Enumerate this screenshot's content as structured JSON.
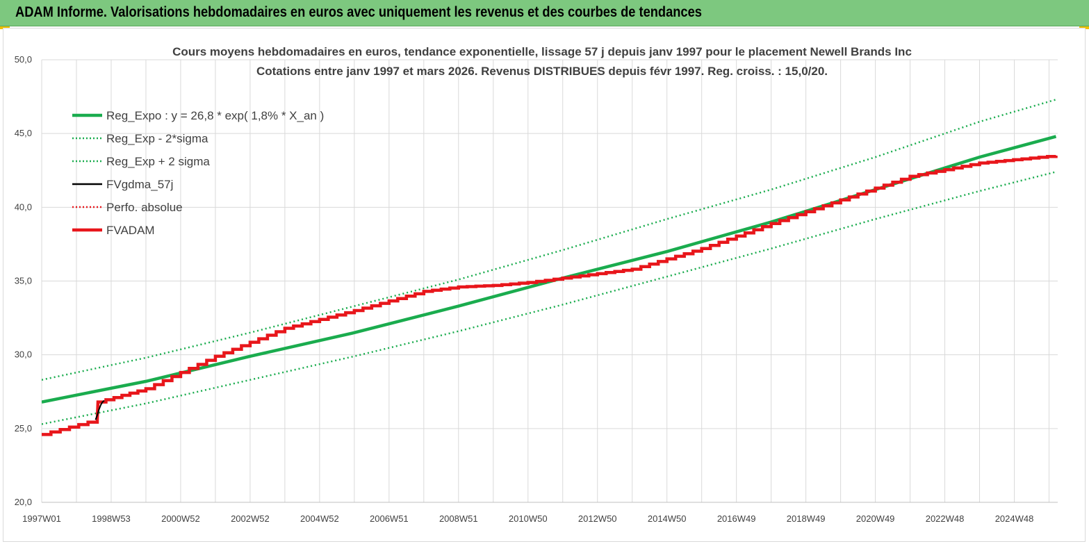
{
  "header": {
    "title": "ADAM Informe. Valorisations hebdomadaires en euros avec uniquement les revenus et des courbes de tendances"
  },
  "colors": {
    "header_bg": "#7dc87f",
    "green": "#1aac4e",
    "red": "#e8161b",
    "black": "#000000",
    "grid": "#d9d9d9",
    "text": "#404040"
  },
  "chart_data": {
    "type": "line",
    "title": [
      "Cours moyens hebdomadaires en euros, tendance exponentielle, lissage 57 j depuis janv 1997 pour le placement Newell Brands Inc",
      "Cotations entre janv 1997 et mars 2026. Revenus DISTRIBUES depuis févr 1997. Reg. croiss. : 15,0/20."
    ],
    "ylim": [
      20,
      50
    ],
    "xlim": [
      1997.0,
      2026.25
    ],
    "y_ticks": [
      "20,0",
      "25,0",
      "30,0",
      "35,0",
      "40,0",
      "45,0",
      "50,0"
    ],
    "x_ticks": [
      {
        "label": "1997W01",
        "x": 1997.0
      },
      {
        "label": "1998W53",
        "x": 1999.0
      },
      {
        "label": "2000W52",
        "x": 2001.0
      },
      {
        "label": "2002W52",
        "x": 2003.0
      },
      {
        "label": "2004W52",
        "x": 2005.0
      },
      {
        "label": "2006W51",
        "x": 2007.0
      },
      {
        "label": "2008W51",
        "x": 2009.0
      },
      {
        "label": "2010W50",
        "x": 2011.0
      },
      {
        "label": "2012W50",
        "x": 2013.0
      },
      {
        "label": "2014W50",
        "x": 2015.0
      },
      {
        "label": "2016W49",
        "x": 2017.0
      },
      {
        "label": "2018W49",
        "x": 2019.0
      },
      {
        "label": "2020W49",
        "x": 2021.0
      },
      {
        "label": "2022W48",
        "x": 2023.0
      },
      {
        "label": "2024W48",
        "x": 2025.0
      }
    ],
    "grid": true,
    "legend_position": "top-left",
    "series": [
      {
        "name": "Reg_Expo : y = 26,8 * exp( 1,8% *  X_an )",
        "style": "solid-thick",
        "color": "#1aac4e",
        "x": [
          1997.0,
          2000.0,
          2003.0,
          2006.0,
          2009.0,
          2012.0,
          2015.0,
          2018.0,
          2021.0,
          2024.0,
          2026.2
        ],
        "y": [
          26.8,
          28.2,
          29.9,
          31.5,
          33.3,
          35.2,
          37.0,
          39.0,
          41.2,
          43.4,
          44.8
        ]
      },
      {
        "name": "Reg_Exp - 2*sigma",
        "style": "dotted",
        "color": "#1aac4e",
        "x": [
          1997.0,
          2000.0,
          2003.0,
          2006.0,
          2009.0,
          2012.0,
          2015.0,
          2018.0,
          2021.0,
          2024.0,
          2026.2
        ],
        "y": [
          25.3,
          26.7,
          28.3,
          29.9,
          31.6,
          33.4,
          35.3,
          37.2,
          39.2,
          41.1,
          42.4
        ]
      },
      {
        "name": "Reg_Exp + 2 sigma",
        "style": "dotted",
        "color": "#1aac4e",
        "x": [
          1997.0,
          2000.0,
          2003.0,
          2006.0,
          2009.0,
          2012.0,
          2015.0,
          2018.0,
          2021.0,
          2024.0,
          2026.2
        ],
        "y": [
          28.3,
          29.8,
          31.5,
          33.3,
          35.1,
          37.1,
          39.2,
          41.2,
          43.4,
          45.8,
          47.3
        ]
      },
      {
        "name": "FVgdma_57j",
        "style": "solid",
        "color": "#000000",
        "x": [
          1998.55,
          1998.6,
          1998.65,
          1998.7,
          1998.75,
          1998.8
        ],
        "y": [
          25.6,
          25.9,
          26.3,
          26.6,
          26.8,
          26.9
        ]
      },
      {
        "name": "Perfo. absolue",
        "style": "dotted",
        "color": "#e8161b",
        "x": [
          1997.0,
          1998.6,
          1998.62,
          2000.0,
          2002.0,
          2004.0,
          2006.0,
          2008.0,
          2009.0,
          2010.0,
          2011.0,
          2012.0,
          2014.0,
          2016.0,
          2018.0,
          2020.0,
          2022.0,
          2024.0,
          2026.2
        ],
        "y": [
          24.6,
          25.6,
          26.8,
          27.7,
          29.9,
          31.8,
          33.0,
          34.3,
          34.6,
          34.7,
          34.9,
          35.2,
          35.8,
          37.2,
          38.9,
          40.5,
          42.1,
          43.0,
          43.5
        ]
      },
      {
        "name": "FVADAM",
        "style": "solid-thick",
        "color": "#e8161b",
        "x": [
          1997.0,
          1998.6,
          1998.62,
          2000.0,
          2002.0,
          2004.0,
          2006.0,
          2008.0,
          2009.0,
          2010.0,
          2011.0,
          2012.0,
          2014.0,
          2016.0,
          2018.0,
          2020.0,
          2022.0,
          2024.0,
          2026.2
        ],
        "y": [
          24.6,
          25.6,
          26.8,
          27.7,
          29.9,
          31.8,
          33.0,
          34.3,
          34.6,
          34.7,
          34.9,
          35.2,
          35.8,
          37.2,
          38.9,
          40.5,
          42.1,
          43.0,
          43.5
        ]
      }
    ]
  }
}
